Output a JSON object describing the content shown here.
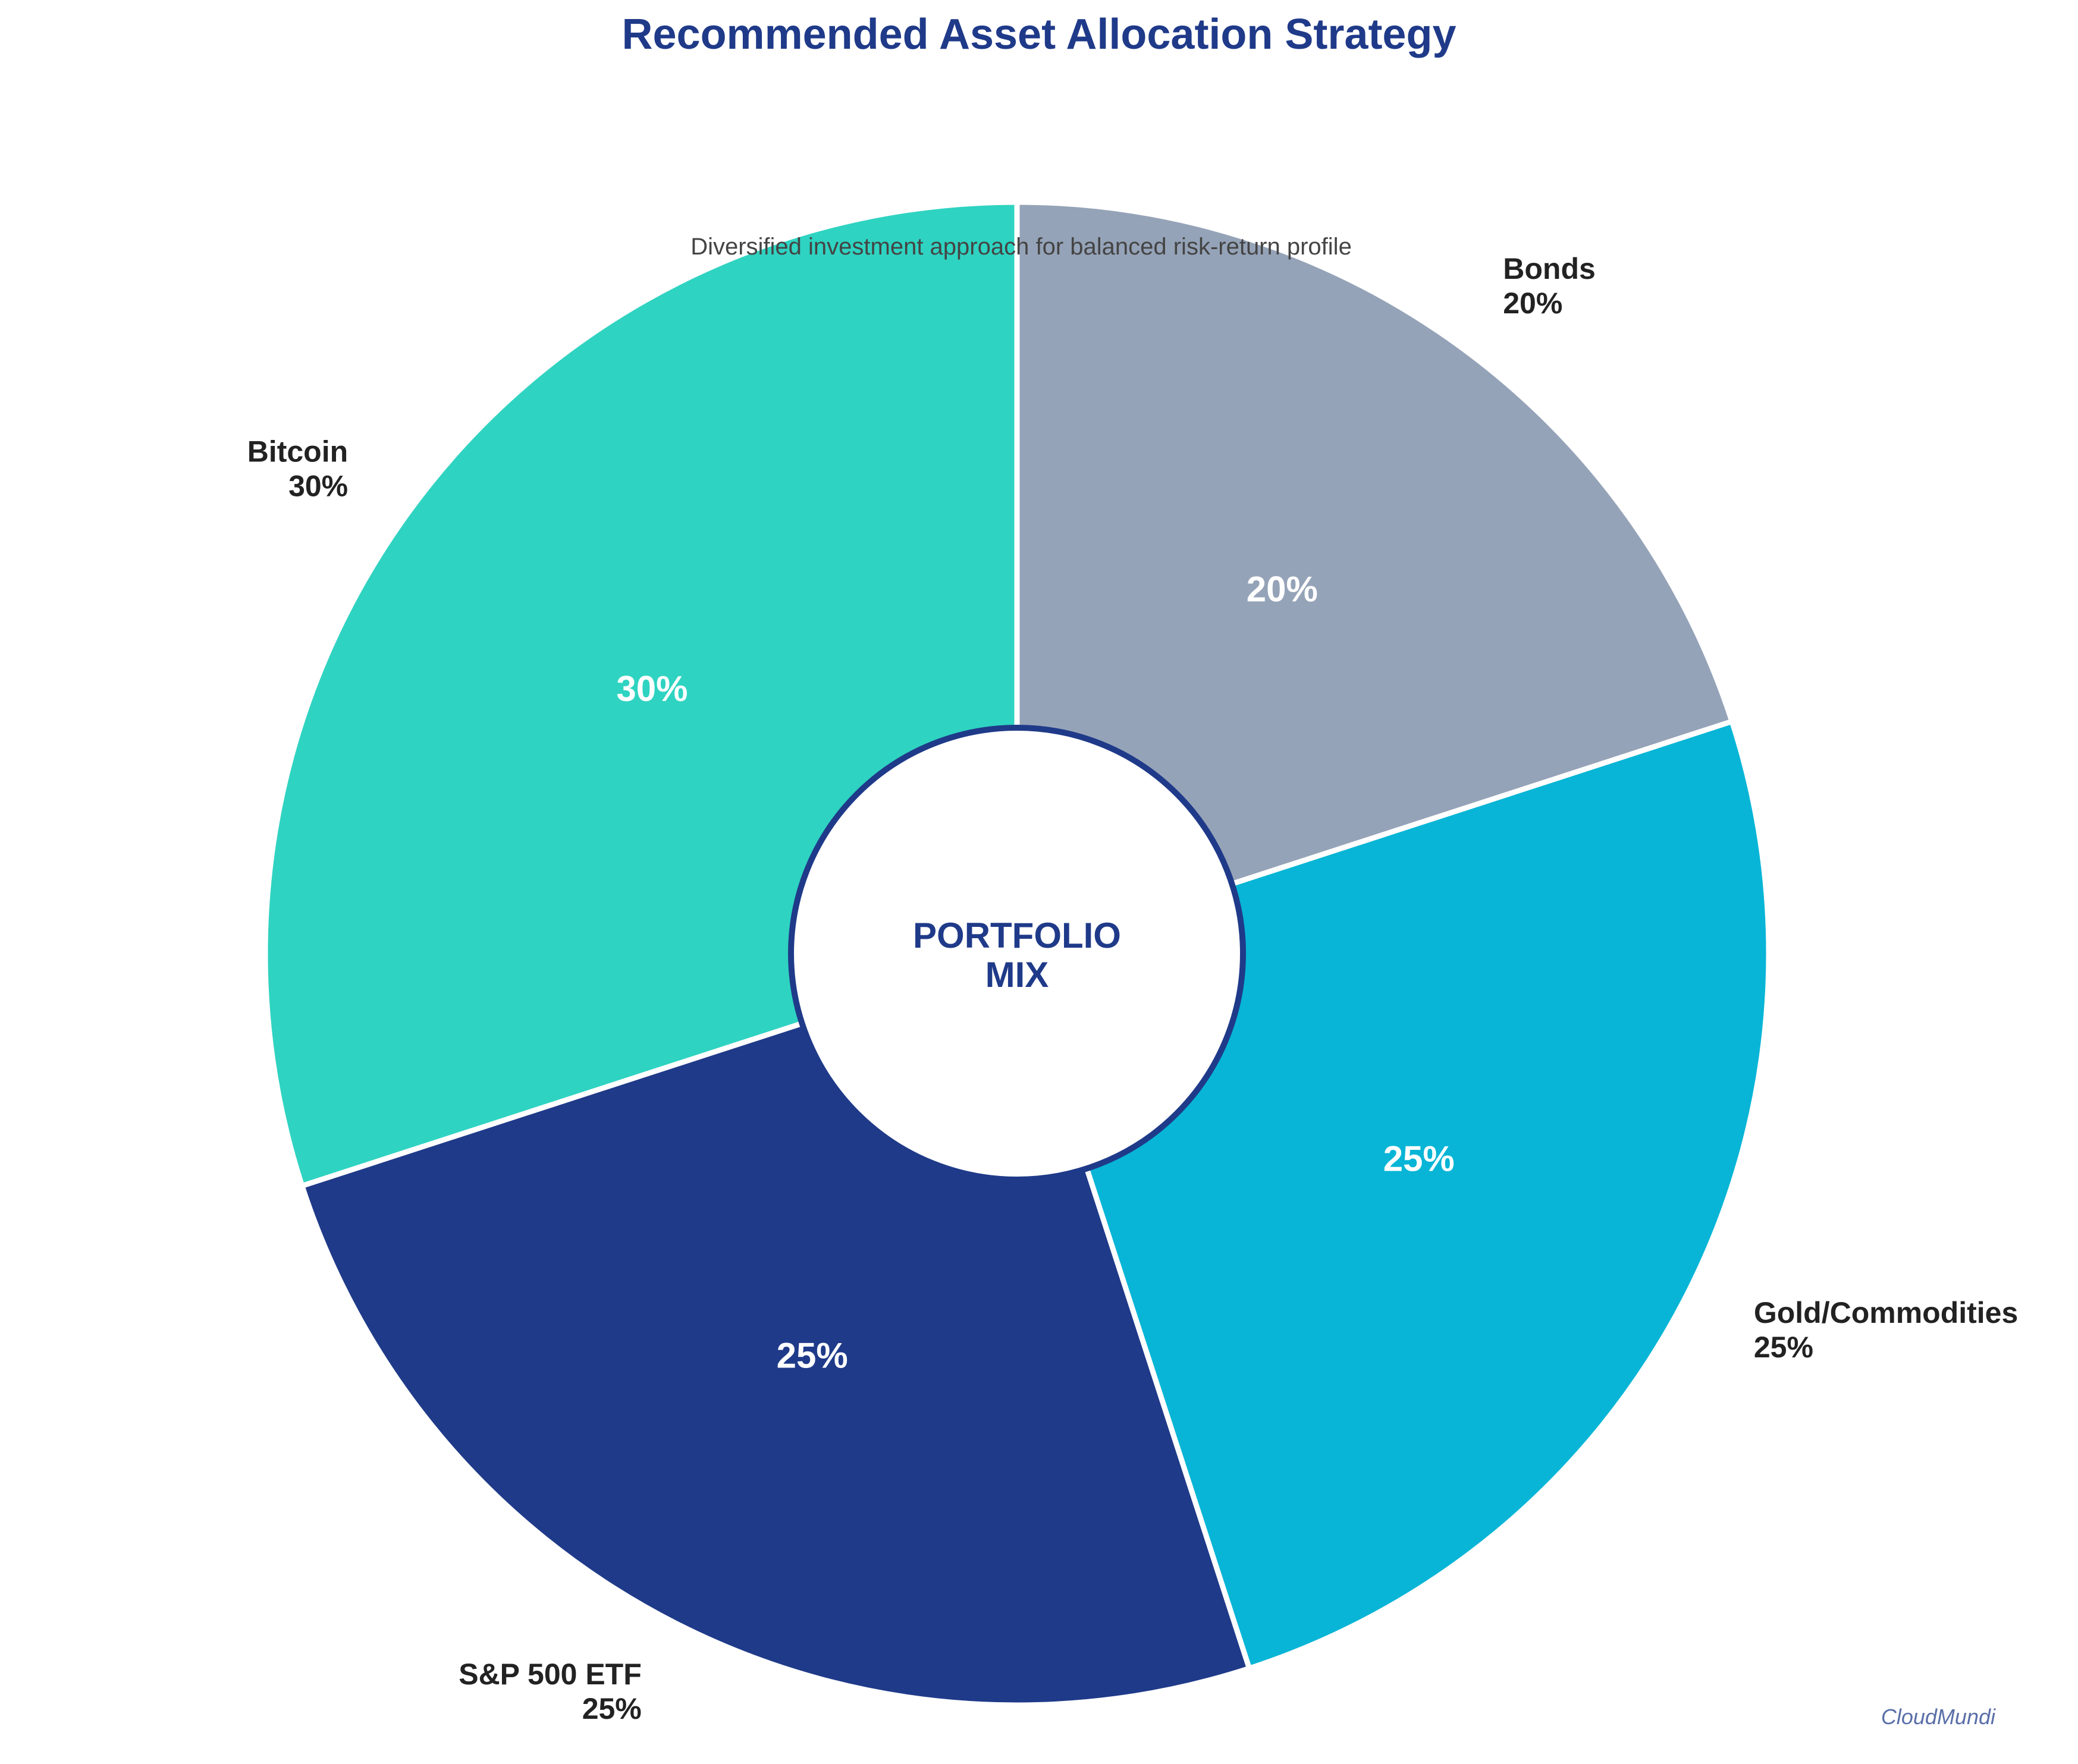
{
  "chart_data": {
    "type": "pie",
    "title": "Recommended Asset Allocation Strategy",
    "subtitle": "Diversified investment approach for balanced risk-return profile",
    "categories": [
      "Bitcoin",
      "S&P 500 ETF",
      "Gold/Commodities",
      "Bonds"
    ],
    "values": [
      30,
      25,
      25,
      20
    ],
    "value_labels": [
      "30%",
      "25%",
      "25%",
      "20%"
    ],
    "colors": [
      "#2fd3c1",
      "#1f3a89",
      "#08b5d6",
      "#95a3b8"
    ],
    "start_angle_deg": 90,
    "direction": "counterclockwise",
    "donut": true,
    "center_label_lines": [
      "PORTFOLIO",
      "MIX"
    ]
  },
  "watermark": "CloudMundi",
  "colors": {
    "title": "#1f3a89",
    "center_text": "#1f3a89",
    "center_ring": "#1f3a89",
    "outer_label": "#222222",
    "pct_label": "#ffffff",
    "subtitle": "#444444",
    "watermark": "#5a6fa8",
    "slice_edge": "#ffffff"
  }
}
